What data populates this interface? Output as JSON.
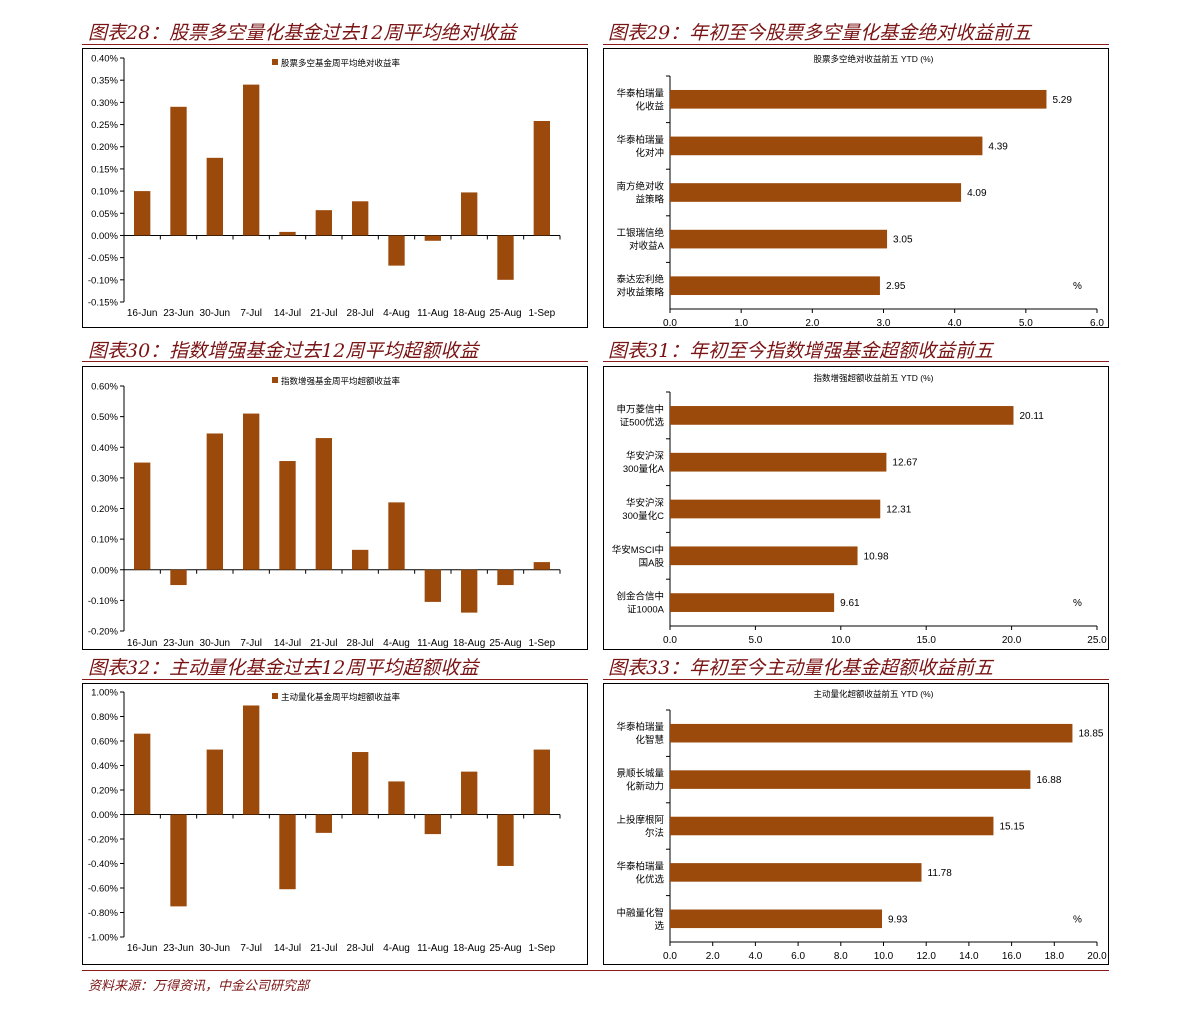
{
  "colors": {
    "bar": "#9b4a0c",
    "title": "#7a1414",
    "rule": "#8b1a1a"
  },
  "source": "资料来源：万得资讯，中金公司研究部",
  "chart_data": [
    {
      "id": "c28",
      "type": "bar",
      "orientation": "vertical",
      "title": "图表28：股票多空量化基金过去12周平均绝对收益",
      "legend": "股票多空基金周平均绝对收益率",
      "legend_position": "top-center",
      "categories": [
        "16-Jun",
        "23-Jun",
        "30-Jun",
        "7-Jul",
        "14-Jul",
        "21-Jul",
        "28-Jul",
        "4-Aug",
        "11-Aug",
        "18-Aug",
        "25-Aug",
        "1-Sep"
      ],
      "values": [
        0.1,
        0.29,
        0.175,
        0.34,
        0.008,
        0.057,
        0.077,
        -0.068,
        -0.012,
        0.097,
        -0.1,
        0.258
      ],
      "ylim": [
        -0.15,
        0.4
      ],
      "ytick_step": 0.05,
      "ytick_decimals": 2,
      "yunit": "%",
      "grid": false
    },
    {
      "id": "c29",
      "type": "bar",
      "orientation": "horizontal",
      "title": "图表29：年初至今股票多空量化基金绝对收益前五",
      "chart_title": "股票多空绝对收益前五 YTD (%)",
      "categories": [
        "华泰柏瑞量化收益",
        "华泰柏瑞量化对冲",
        "南方绝对收益策略",
        "工银瑞信绝对收益A",
        "泰达宏利绝对收益策略"
      ],
      "category_lines": [
        [
          "华泰柏瑞量",
          "化收益"
        ],
        [
          "华泰柏瑞量",
          "化对冲"
        ],
        [
          "南方绝对收",
          "益策略"
        ],
        [
          "工银瑞信绝",
          "对收益A"
        ],
        [
          "泰达宏利绝",
          "对收益策略"
        ]
      ],
      "values": [
        5.29,
        4.39,
        4.09,
        3.05,
        2.95
      ],
      "value_labels": [
        "5.29",
        "4.39",
        "4.09",
        "3.05",
        "2.95"
      ],
      "xlim": [
        0,
        6.0
      ],
      "xtick_step": 1.0,
      "xtick_decimals": 1,
      "unit_label": "%",
      "grid": false
    },
    {
      "id": "c30",
      "type": "bar",
      "orientation": "vertical",
      "title": "图表30：指数增强基金过去12周平均超额收益",
      "legend": "指数增强基金周平均超额收益率",
      "legend_position": "top-center",
      "categories": [
        "16-Jun",
        "23-Jun",
        "30-Jun",
        "7-Jul",
        "14-Jul",
        "21-Jul",
        "28-Jul",
        "4-Aug",
        "11-Aug",
        "18-Aug",
        "25-Aug",
        "1-Sep"
      ],
      "values": [
        0.35,
        -0.05,
        0.445,
        0.51,
        0.355,
        0.43,
        0.065,
        0.22,
        -0.105,
        -0.14,
        -0.05,
        0.025
      ],
      "ylim": [
        -0.2,
        0.6
      ],
      "ytick_step": 0.1,
      "ytick_decimals": 2,
      "yunit": "%",
      "grid": false
    },
    {
      "id": "c31",
      "type": "bar",
      "orientation": "horizontal",
      "title": "图表31：年初至今指数增强基金超额收益前五",
      "chart_title": "指数增强超额收益前五 YTD (%)",
      "categories": [
        "申万菱信中证500优选",
        "华安沪深300量化A",
        "华安沪深300量化C",
        "华安MSCI中国A股",
        "创金合信中证1000A"
      ],
      "category_lines": [
        [
          "申万菱信中",
          "证500优选"
        ],
        [
          "华安沪深",
          "300量化A"
        ],
        [
          "华安沪深",
          "300量化C"
        ],
        [
          "华安MSCI中",
          "国A股"
        ],
        [
          "创金合信中",
          "证1000A"
        ]
      ],
      "values": [
        20.11,
        12.67,
        12.31,
        10.98,
        9.61
      ],
      "value_labels": [
        "20.11",
        "12.67",
        "12.31",
        "10.98",
        "9.61"
      ],
      "xlim": [
        0,
        25.0
      ],
      "xtick_step": 5.0,
      "xtick_decimals": 1,
      "unit_label": "%",
      "grid": false
    },
    {
      "id": "c32",
      "type": "bar",
      "orientation": "vertical",
      "title": "图表32：主动量化基金过去12周平均超额收益",
      "legend": "主动量化基金周平均超额收益率",
      "legend_position": "top-center",
      "categories": [
        "16-Jun",
        "23-Jun",
        "30-Jun",
        "7-Jul",
        "14-Jul",
        "21-Jul",
        "28-Jul",
        "4-Aug",
        "11-Aug",
        "18-Aug",
        "25-Aug",
        "1-Sep"
      ],
      "values": [
        0.66,
        -0.75,
        0.53,
        0.89,
        -0.61,
        -0.15,
        0.51,
        0.27,
        -0.16,
        0.35,
        -0.42,
        0.53
      ],
      "ylim": [
        -1.0,
        1.0
      ],
      "ytick_step": 0.2,
      "ytick_decimals": 2,
      "yunit": "%",
      "grid": false
    },
    {
      "id": "c33",
      "type": "bar",
      "orientation": "horizontal",
      "title": "图表33：年初至今主动量化基金超额收益前五",
      "chart_title": "主动量化超额收益前五 YTD (%)",
      "categories": [
        "华泰柏瑞量化智慧",
        "景顺长城量化新动力",
        "上投摩根阿尔法",
        "华泰柏瑞量化优选",
        "中融量化智选"
      ],
      "category_lines": [
        [
          "华泰柏瑞量",
          "化智慧"
        ],
        [
          "景顺长城量",
          "化新动力"
        ],
        [
          "上投摩根阿",
          "尔法"
        ],
        [
          "华泰柏瑞量",
          "化优选"
        ],
        [
          "中融量化智",
          "选"
        ]
      ],
      "values": [
        18.85,
        16.88,
        15.15,
        11.78,
        9.93
      ],
      "value_labels": [
        "18.85",
        "16.88",
        "15.15",
        "11.78",
        "9.93"
      ],
      "xlim": [
        0,
        20.0
      ],
      "xtick_step": 2.0,
      "xtick_decimals": 1,
      "unit_label": "%",
      "grid": false
    }
  ]
}
